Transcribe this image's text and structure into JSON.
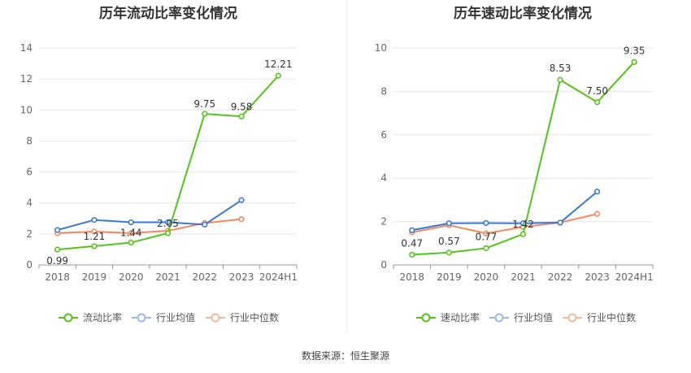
{
  "colors": {
    "primary": "#52c41a",
    "avg": "#3a78d8",
    "median": "#f08a5d",
    "legend_avg": "#9bb8ea",
    "legend_median": "#f4b79e",
    "grid": "#e6e6e6",
    "axis": "#999999"
  },
  "source": "数据来源：恒生聚源",
  "chart_data": [
    {
      "type": "line",
      "title": "历年流动比率变化情况",
      "categories": [
        "2018",
        "2019",
        "2020",
        "2021",
        "2022",
        "2023",
        "2024H1"
      ],
      "ylim": [
        0,
        14
      ],
      "yticks": [
        0,
        2,
        4,
        6,
        8,
        10,
        12,
        14
      ],
      "grid": true,
      "legend_position": "bottom",
      "series": [
        {
          "name": "流动比率",
          "values": [
            0.99,
            1.21,
            1.44,
            2.05,
            9.75,
            9.58,
            12.21
          ],
          "labels": [
            "0.99",
            "1.21",
            "1.44",
            "2.05",
            "9.75",
            "9.58",
            "12.21"
          ]
        },
        {
          "name": "行业均值",
          "values": [
            2.25,
            2.9,
            2.75,
            2.75,
            2.6,
            4.18,
            null
          ]
        },
        {
          "name": "行业中位数",
          "values": [
            2.05,
            2.15,
            2.05,
            2.2,
            2.7,
            2.95,
            null
          ]
        }
      ]
    },
    {
      "type": "line",
      "title": "历年速动比率变化情况",
      "categories": [
        "2018",
        "2019",
        "2020",
        "2021",
        "2022",
        "2023",
        "2024H1"
      ],
      "ylim": [
        0,
        10
      ],
      "yticks": [
        0,
        2,
        4,
        6,
        8,
        10
      ],
      "grid": true,
      "legend_position": "bottom",
      "series": [
        {
          "name": "速动比率",
          "values": [
            0.47,
            0.57,
            0.77,
            1.42,
            8.53,
            7.5,
            9.35
          ],
          "labels": [
            "0.47",
            "0.57",
            "0.77",
            "1.42",
            "8.53",
            "7.50",
            "9.35"
          ]
        },
        {
          "name": "行业均值",
          "values": [
            1.6,
            1.92,
            1.93,
            1.92,
            1.95,
            3.38,
            null
          ]
        },
        {
          "name": "行业中位数",
          "values": [
            1.5,
            1.83,
            1.45,
            1.75,
            1.95,
            2.35,
            null
          ]
        }
      ]
    }
  ]
}
